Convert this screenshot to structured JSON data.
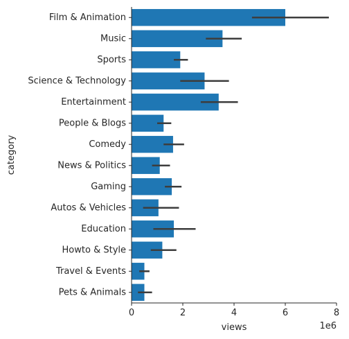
{
  "chart_data": {
    "type": "bar",
    "orientation": "horizontal",
    "xlabel": "views",
    "ylabel": "category",
    "x_offset_text": "1e6",
    "x_scale_multiplier": 1000000,
    "xlim": [
      0,
      8000000
    ],
    "x_ticks": [
      0,
      2000000,
      4000000,
      6000000,
      8000000
    ],
    "x_tick_labels": [
      "0",
      "2",
      "4",
      "6",
      "8"
    ],
    "bar_color": "#1f77b4",
    "error_bar_color": "#3d3d3d",
    "grid": false,
    "categories": [
      "Film & Animation",
      "Music",
      "Sports",
      "Science & Technology",
      "Entertainment",
      "People & Blogs",
      "Comedy",
      "News & Politics",
      "Gaming",
      "Autos & Vehicles",
      "Education",
      "Howto & Style",
      "Travel & Events",
      "Pets & Animals"
    ],
    "values": [
      6000000,
      3550000,
      1900000,
      2850000,
      3400000,
      1250000,
      1620000,
      1100000,
      1570000,
      1050000,
      1650000,
      1200000,
      500000,
      500000
    ],
    "error_low": [
      4700000,
      2900000,
      1650000,
      1900000,
      2700000,
      1000000,
      1250000,
      800000,
      1300000,
      450000,
      850000,
      750000,
      300000,
      250000
    ],
    "error_high": [
      7700000,
      4300000,
      2200000,
      3800000,
      4150000,
      1550000,
      2050000,
      1500000,
      1950000,
      1850000,
      2500000,
      1750000,
      700000,
      800000
    ]
  }
}
